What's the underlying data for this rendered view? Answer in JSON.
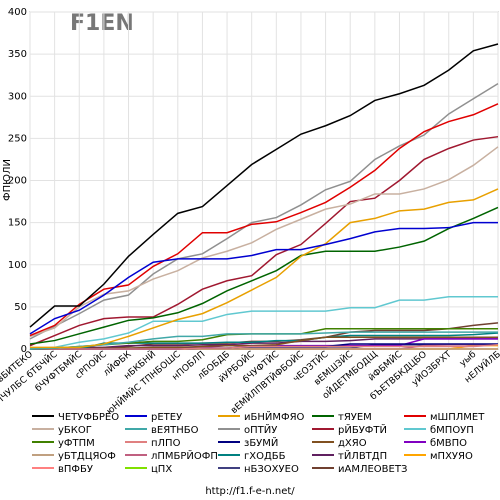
{
  "chart_data": {
    "type": "line",
    "logo": "F1EN",
    "ylabel": "ФПЮЛИ",
    "url": "http://f1.f-e-n.net/",
    "grid": true,
    "ylim": [
      0,
      400
    ],
    "yticks": [
      0,
      50,
      100,
      150,
      200,
      250,
      300,
      350,
      400
    ],
    "categories": [
      "вБИТЕКО",
      "уБХДПЧУЛБС бТБЧЙС",
      "бЧУФТБМЙС",
      "сРПОЙС",
      "лЙФБК",
      "нБКБНЙ",
      "юНЙМЙС ТПНБОШС",
      "нПОБЛП",
      "лБОБДБ",
      "йУРБОЙС",
      "бЧУФТЙС",
      "вЕМЙЛПВТЙФБОЙС",
      "чЕОЗТЙС",
      "вЕМШЗЙС",
      "оЙДЕТМБОДЩ",
      "йФБМЙС",
      "бЪЕТВБКДЦБО",
      "уЙОЗБРХТ",
      "уыб",
      "нЕЛУЙЛБ"
    ],
    "series": [
      {
        "name": "ЧЕТУФБРЕО",
        "color": "#000000",
        "values": [
          26,
          51,
          51,
          77,
          110,
          136,
          161,
          169,
          194,
          219,
          237,
          255,
          265,
          277,
          295,
          303,
          313,
          331,
          354,
          362
        ]
      },
      {
        "name": "рЕТЕУ",
        "color": "#0000d0",
        "values": [
          18,
          36,
          46,
          64,
          85,
          103,
          107,
          107,
          107,
          111,
          118,
          118,
          124,
          131,
          139,
          143,
          143,
          144,
          150,
          150
        ]
      },
      {
        "name": "иБНЙМФЯО",
        "color": "#e8a000",
        "values": [
          2,
          2,
          2,
          6,
          15,
          25,
          35,
          42,
          55,
          70,
          85,
          110,
          125,
          150,
          155,
          164,
          166,
          174,
          177,
          190
        ]
      },
      {
        "name": "тЯУЕМ",
        "color": "#006400",
        "values": [
          6,
          10,
          18,
          26,
          34,
          37,
          43,
          54,
          69,
          81,
          93,
          111,
          116,
          116,
          116,
          121,
          128,
          143,
          155,
          168
        ]
      },
      {
        "name": "мШПЛМЕТ",
        "color": "#e00000",
        "values": [
          16,
          28,
          53,
          71,
          76,
          98,
          113,
          138,
          138,
          148,
          151,
          162,
          174,
          192,
          212,
          238,
          258,
          270,
          278,
          291
        ]
      },
      {
        "name": "уБКОГ",
        "color": "#c8b0a0",
        "values": [
          15,
          25,
          50,
          65,
          69,
          83,
          93,
          108,
          116,
          126,
          142,
          154,
          166,
          172,
          184,
          184,
          190,
          201,
          218,
          240
        ]
      },
      {
        "name": "вЕЯТНБО",
        "color": "#40a8a8",
        "values": [
          0,
          1,
          3,
          5,
          8,
          12,
          15,
          15,
          18,
          18,
          18,
          18,
          19,
          20,
          20,
          20,
          20,
          20,
          20,
          20
        ]
      },
      {
        "name": "оПТЙУ",
        "color": "#909090",
        "values": [
          12,
          27,
          42,
          58,
          64,
          89,
          107,
          113,
          131,
          150,
          156,
          171,
          189,
          199,
          225,
          241,
          254,
          279,
          297,
          315
        ]
      },
      {
        "name": "рЙБУФТЙ",
        "color": "#a01830",
        "values": [
          4,
          16,
          28,
          36,
          38,
          38,
          53,
          71,
          81,
          87,
          112,
          124,
          149,
          175,
          179,
          200,
          225,
          238,
          248,
          252
        ]
      },
      {
        "name": "бМПОУП",
        "color": "#60c8d0",
        "values": [
          0,
          2,
          8,
          12,
          19,
          33,
          33,
          33,
          41,
          45,
          45,
          45,
          45,
          49,
          49,
          58,
          58,
          62,
          62,
          62
        ]
      },
      {
        "name": "уФТПМ",
        "color": "#408000",
        "values": [
          0,
          1,
          3,
          5,
          7,
          9,
          9,
          11,
          17,
          18,
          18,
          18,
          24,
          24,
          24,
          24,
          24,
          24,
          24,
          24
        ]
      },
      {
        "name": "пЛПО",
        "color": "#e08080",
        "values": [
          0,
          0,
          0,
          0,
          0,
          0,
          0,
          1,
          1,
          3,
          3,
          3,
          3,
          3,
          3,
          3,
          3,
          3,
          3,
          5
        ]
      },
      {
        "name": "зБУМЙ",
        "color": "#000080",
        "values": [
          0,
          0,
          0,
          0,
          0,
          0,
          0,
          1,
          1,
          3,
          3,
          3,
          3,
          6,
          6,
          6,
          6,
          6,
          6,
          6
        ]
      },
      {
        "name": "дХЯО",
        "color": "#805020",
        "values": [
          0,
          0,
          0,
          1,
          1,
          2,
          2,
          3,
          4,
          4,
          5,
          10,
          14,
          14,
          14,
          14,
          14,
          14,
          14,
          14
        ]
      },
      {
        "name": "бМВПО",
        "color": "#8000c0",
        "values": [
          0,
          0,
          0,
          0,
          0,
          0,
          0,
          2,
          4,
          4,
          4,
          4,
          4,
          4,
          4,
          4,
          12,
          12,
          12,
          12
        ]
      },
      {
        "name": "уБТДЦЯОФ",
        "color": "#c0a080",
        "values": [
          0,
          0,
          0,
          0,
          0,
          0,
          0,
          0,
          0,
          0,
          0,
          0,
          0,
          0,
          0,
          0,
          0,
          0,
          0,
          0
        ]
      },
      {
        "name": "лПМБРЙОФП",
        "color": "#c06080",
        "values": [
          0,
          0,
          0,
          0,
          0,
          0,
          0,
          0,
          0,
          0,
          0,
          0,
          0,
          0,
          0,
          0,
          4,
          5,
          5,
          5
        ]
      },
      {
        "name": "гХОДББ",
        "color": "#008080",
        "values": [
          0,
          0,
          0,
          7,
          7,
          7,
          7,
          7,
          8,
          8,
          10,
          10,
          14,
          16,
          16,
          16,
          16,
          16,
          17,
          19
        ]
      },
      {
        "name": "тЙЛВТДП",
        "color": "#602060",
        "values": [
          0,
          0,
          2,
          2,
          4,
          4,
          4,
          5,
          5,
          7,
          7,
          9,
          9,
          10,
          12,
          12,
          12,
          12,
          12,
          12
        ]
      },
      {
        "name": "мПХУЯО",
        "color": "#ffa500",
        "values": [
          0,
          0,
          0,
          0,
          0,
          0,
          0,
          0,
          0,
          0,
          0,
          0,
          0,
          0,
          0,
          0,
          0,
          0,
          4,
          4
        ]
      },
      {
        "name": "вПФБУ",
        "color": "#ff8080",
        "values": [
          0,
          0,
          0,
          0,
          0,
          0,
          0,
          0,
          0,
          0,
          0,
          0,
          0,
          0,
          0,
          0,
          0,
          0,
          0,
          0
        ]
      },
      {
        "name": "цПХ",
        "color": "#80e000",
        "values": [
          0,
          0,
          0,
          0,
          0,
          0,
          0,
          0,
          0,
          0,
          0,
          0,
          0,
          0,
          0,
          0,
          0,
          0,
          0,
          0
        ]
      },
      {
        "name": "нБЗОХУЕО",
        "color": "#404080",
        "values": [
          0,
          0,
          0,
          0,
          1,
          1,
          1,
          1,
          1,
          1,
          1,
          1,
          1,
          1,
          5,
          5,
          5,
          5,
          5,
          5
        ]
      },
      {
        "name": "иАМЛЕОВЕТЗ",
        "color": "#704030",
        "values": [
          0,
          0,
          0,
          1,
          3,
          6,
          6,
          7,
          7,
          9,
          9,
          11,
          14,
          20,
          22,
          22,
          22,
          24,
          28,
          31
        ]
      }
    ]
  }
}
